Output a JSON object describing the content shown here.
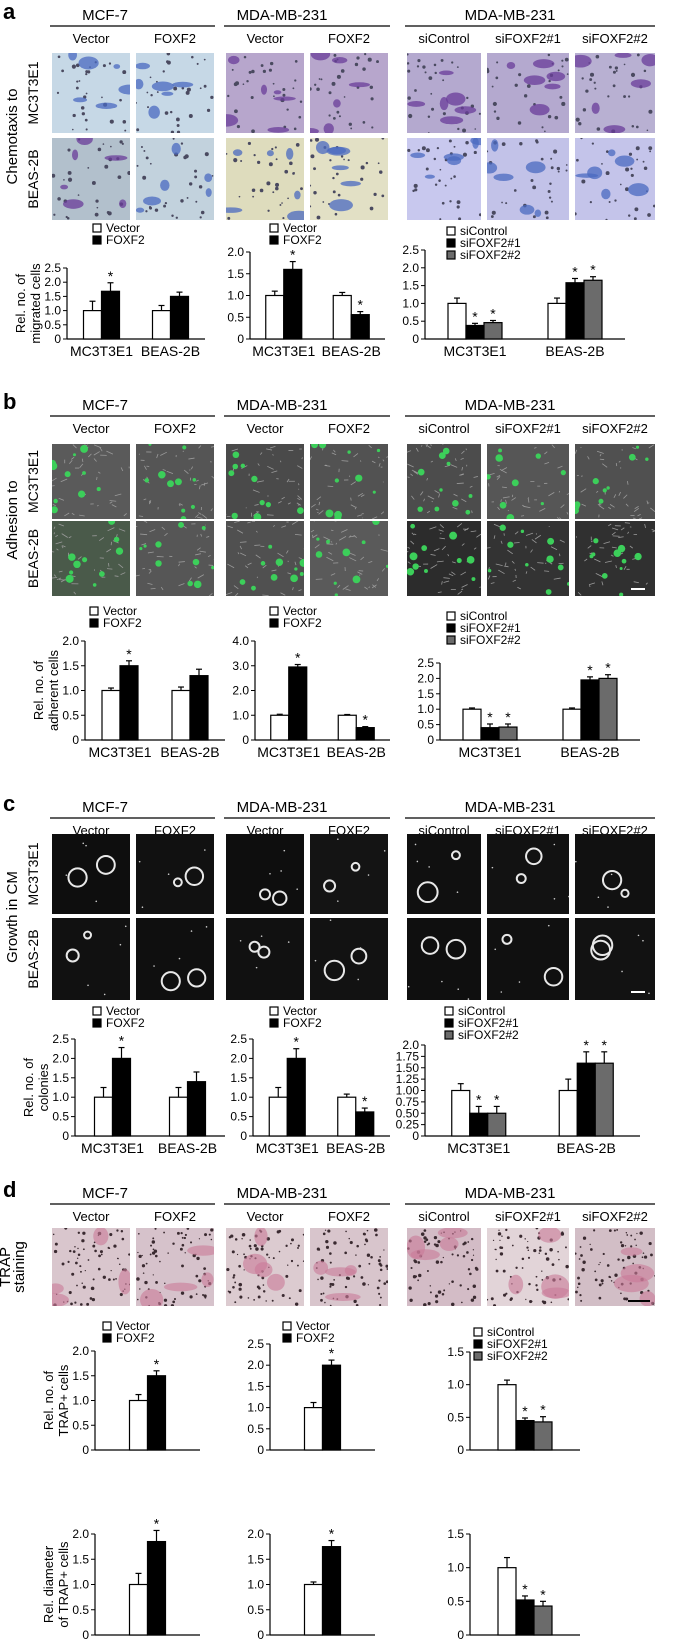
{
  "panels": [
    {
      "letter": "a",
      "groups": [
        {
          "title": "MCF-7",
          "columns": [
            "Vector",
            "FOXF2"
          ]
        },
        {
          "title": "MDA-MB-231",
          "columns": [
            "Vector",
            "FOXF2"
          ]
        },
        {
          "title": "MDA-MB-231",
          "columns": [
            "siControl",
            "siFOXF2#1",
            "siFOXF2#2"
          ]
        }
      ],
      "row_title": [
        "Chemotaxis to"
      ],
      "row_labels": [
        "MC3T3E1",
        "BEAS-2B"
      ],
      "image_palettes": [
        [
          "#c6d8e6",
          "#c6d8e6",
          "#b7a6cc",
          "#b7a6cc",
          "#b4a9cf",
          "#b4a9cf",
          "#b8b0d2"
        ],
        [
          "#b2c0cc",
          "#c2d2dd",
          "#dedcbd",
          "#e2e0c5",
          "#c8c8ee",
          "#c2c2e8",
          "#c4c4ea"
        ]
      ],
      "ylabel": [
        "Rel. no. of",
        "migrated cells"
      ]
    },
    {
      "letter": "b",
      "groups": [
        {
          "title": "MCF-7",
          "columns": [
            "Vector",
            "FOXF2"
          ]
        },
        {
          "title": "MDA-MB-231",
          "columns": [
            "Vector",
            "FOXF2"
          ]
        },
        {
          "title": "MDA-MB-231",
          "columns": [
            "siControl",
            "siFOXF2#1",
            "siFOXF2#2"
          ]
        }
      ],
      "row_title": [
        "Adhesion to"
      ],
      "row_labels": [
        "MC3T3E1",
        "BEAS-2B"
      ],
      "image_palettes": [
        [
          "#5a5a5a",
          "#555555",
          "#4a4a4a",
          "#525252",
          "#4c4c4c",
          "#565656",
          "#505050"
        ],
        [
          "#4a5a4a",
          "#565656",
          "#505050",
          "#5a5a5a",
          "#2c2c2c",
          "#333333",
          "#303030"
        ]
      ],
      "ylabel": [
        "Rel. no. of",
        "adherent cells"
      ]
    },
    {
      "letter": "c",
      "groups": [
        {
          "title": "MCF-7",
          "columns": [
            "Vector",
            "FOXF2"
          ]
        },
        {
          "title": "MDA-MB-231",
          "columns": [
            "Vector",
            "FOXF2"
          ]
        },
        {
          "title": "MDA-MB-231",
          "columns": [
            "siControl",
            "siFOXF2#1",
            "siFOXF2#2"
          ]
        }
      ],
      "row_title": [
        "Growth in CM"
      ],
      "row_labels": [
        "MC3T3E1",
        "BEAS-2B"
      ],
      "image_palettes": [
        [
          "#0e0e0e",
          "#111111",
          "#0e0e0e",
          "#141414",
          "#101010",
          "#121212",
          "#111111"
        ],
        [
          "#111111",
          "#0f0f0f",
          "#111111",
          "#121212",
          "#0f0f0f",
          "#101010",
          "#121212"
        ]
      ],
      "ylabel": [
        "Rel. no. of",
        "colonies"
      ]
    },
    {
      "letter": "d",
      "groups": [
        {
          "title": "MCF-7",
          "columns": [
            "Vector",
            "FOXF2"
          ]
        },
        {
          "title": "MDA-MB-231",
          "columns": [
            "Vector",
            "FOXF2"
          ]
        },
        {
          "title": "MDA-MB-231",
          "columns": [
            "siControl",
            "siFOXF2#1",
            "siFOXF2#2"
          ]
        }
      ],
      "row_title": [
        "TRAP",
        "staining"
      ],
      "row_labels": [],
      "image_palettes": [
        [
          "#d9c6cd",
          "#d6c2cb",
          "#dccbd0",
          "#d8c5cc",
          "#d3bcc6",
          "#e2d4d8",
          "#d2bec6"
        ]
      ],
      "ylabels": [
        [
          "Rel. no. of",
          "TRAP+ cells"
        ],
        [
          "Rel. diameter",
          "of TRAP+ cells"
        ]
      ]
    }
  ],
  "chart_data": [
    {
      "panel": "a",
      "type": "bar",
      "categories": [
        "MC3T3E1",
        "BEAS-2B"
      ],
      "legend": [
        "Vector",
        "FOXF2"
      ],
      "ylabel": "Rel. no. of migrated cells",
      "ylim": [
        0,
        2.5
      ],
      "ticks": [
        "0",
        "0.5",
        "1.0",
        "1.5",
        "2.0",
        "2.5"
      ],
      "series": [
        {
          "name": "Vector",
          "values": [
            1.0,
            1.0
          ],
          "errors": [
            0.33,
            0.18
          ]
        },
        {
          "name": "FOXF2",
          "values": [
            1.68,
            1.5
          ],
          "errors": [
            0.3,
            0.15
          ]
        }
      ],
      "significant": [
        [
          false,
          false
        ],
        [
          true,
          false
        ]
      ]
    },
    {
      "panel": "a",
      "type": "bar",
      "categories": [
        "MC3T3E1",
        "BEAS-2B"
      ],
      "legend": [
        "Vector",
        "FOXF2"
      ],
      "ylabel": "",
      "ylim": [
        0,
        2.0
      ],
      "ticks": [
        "0",
        "0.5",
        "1.0",
        "1.5",
        "2.0"
      ],
      "series": [
        {
          "name": "Vector",
          "values": [
            1.0,
            1.0
          ],
          "errors": [
            0.1,
            0.07
          ]
        },
        {
          "name": "FOXF2",
          "values": [
            1.6,
            0.56
          ],
          "errors": [
            0.18,
            0.07
          ]
        }
      ],
      "significant": [
        [
          false,
          false
        ],
        [
          true,
          true
        ]
      ]
    },
    {
      "panel": "a",
      "type": "bar",
      "categories": [
        "MC3T3E1",
        "BEAS-2B"
      ],
      "legend": [
        "siControl",
        "siFOXF2#1",
        "siFOXF2#2"
      ],
      "ylabel": "",
      "ylim": [
        0,
        2.5
      ],
      "ticks": [
        "0",
        "0.5",
        "1.0",
        "1.5",
        "2.0",
        "2.5"
      ],
      "series": [
        {
          "name": "siControl",
          "values": [
            1.0,
            1.0
          ],
          "errors": [
            0.15,
            0.15
          ]
        },
        {
          "name": "siFOXF2#1",
          "values": [
            0.38,
            1.58
          ],
          "errors": [
            0.06,
            0.12
          ]
        },
        {
          "name": "siFOXF2#2",
          "values": [
            0.46,
            1.65
          ],
          "errors": [
            0.06,
            0.1
          ]
        }
      ],
      "significant": [
        [
          false,
          false
        ],
        [
          true,
          true
        ],
        [
          true,
          true
        ]
      ]
    },
    {
      "panel": "b",
      "type": "bar",
      "categories": [
        "MC3T3E1",
        "BEAS-2B"
      ],
      "legend": [
        "Vector",
        "FOXF2"
      ],
      "ylabel": "Rel. no. of adherent cells",
      "ylim": [
        0,
        2.0
      ],
      "ticks": [
        "0",
        "0.5",
        "1.0",
        "1.5",
        "2.0"
      ],
      "series": [
        {
          "name": "Vector",
          "values": [
            1.0,
            1.0
          ],
          "errors": [
            0.05,
            0.07
          ]
        },
        {
          "name": "FOXF2",
          "values": [
            1.5,
            1.3
          ],
          "errors": [
            0.1,
            0.13
          ]
        }
      ],
      "significant": [
        [
          false,
          false
        ],
        [
          true,
          false
        ]
      ]
    },
    {
      "panel": "b",
      "type": "bar",
      "categories": [
        "MC3T3E1",
        "BEAS-2B"
      ],
      "legend": [
        "Vector",
        "FOXF2"
      ],
      "ylabel": "",
      "ylim": [
        0,
        4.0
      ],
      "ticks": [
        "0",
        "1.0",
        "2.0",
        "3.0",
        "4.0"
      ],
      "series": [
        {
          "name": "Vector",
          "values": [
            1.0,
            1.0
          ],
          "errors": [
            0.04,
            0.03
          ]
        },
        {
          "name": "FOXF2",
          "values": [
            2.95,
            0.5
          ],
          "errors": [
            0.1,
            0.04
          ]
        }
      ],
      "significant": [
        [
          false,
          false
        ],
        [
          true,
          true
        ]
      ]
    },
    {
      "panel": "b",
      "type": "bar",
      "categories": [
        "MC3T3E1",
        "BEAS-2B"
      ],
      "legend": [
        "siControl",
        "siFOXF2#1",
        "siFOXF2#2"
      ],
      "ylabel": "",
      "ylim": [
        0,
        2.5
      ],
      "ticks": [
        "0",
        "0.5",
        "1.0",
        "1.5",
        "2.0",
        "2.5"
      ],
      "series": [
        {
          "name": "siControl",
          "values": [
            1.0,
            1.0
          ],
          "errors": [
            0.04,
            0.04
          ]
        },
        {
          "name": "siFOXF2#1",
          "values": [
            0.4,
            1.95
          ],
          "errors": [
            0.12,
            0.1
          ]
        },
        {
          "name": "siFOXF2#2",
          "values": [
            0.42,
            2.0
          ],
          "errors": [
            0.1,
            0.12
          ]
        }
      ],
      "significant": [
        [
          false,
          false
        ],
        [
          true,
          true
        ],
        [
          true,
          true
        ]
      ]
    },
    {
      "panel": "c",
      "type": "bar",
      "categories": [
        "MC3T3E1",
        "BEAS-2B"
      ],
      "legend": [
        "Vector",
        "FOXF2"
      ],
      "ylabel": "Rel. no. of colonies",
      "ylim": [
        0,
        2.5
      ],
      "ticks": [
        "0",
        "0.5",
        "1.0",
        "1.5",
        "2.0",
        "2.5"
      ],
      "series": [
        {
          "name": "Vector",
          "values": [
            1.0,
            1.0
          ],
          "errors": [
            0.25,
            0.25
          ]
        },
        {
          "name": "FOXF2",
          "values": [
            2.0,
            1.4
          ],
          "errors": [
            0.28,
            0.25
          ]
        }
      ],
      "significant": [
        [
          false,
          false
        ],
        [
          true,
          false
        ]
      ]
    },
    {
      "panel": "c",
      "type": "bar",
      "categories": [
        "MC3T3E1",
        "BEAS-2B"
      ],
      "legend": [
        "Vector",
        "FOXF2"
      ],
      "ylabel": "",
      "ylim": [
        0,
        2.5
      ],
      "ticks": [
        "0",
        "0.5",
        "1.0",
        "1.5",
        "2.0",
        "2.5"
      ],
      "series": [
        {
          "name": "Vector",
          "values": [
            1.0,
            1.0
          ],
          "errors": [
            0.25,
            0.08
          ]
        },
        {
          "name": "FOXF2",
          "values": [
            2.0,
            0.62
          ],
          "errors": [
            0.25,
            0.1
          ]
        }
      ],
      "significant": [
        [
          false,
          false
        ],
        [
          true,
          true
        ]
      ]
    },
    {
      "panel": "c",
      "type": "bar",
      "categories": [
        "MC3T3E1",
        "BEAS-2B"
      ],
      "legend": [
        "siControl",
        "siFOXF2#1",
        "siFOXF2#2"
      ],
      "ylabel": "",
      "ylim": [
        0,
        2.0
      ],
      "ticks": [
        "0",
        "0.25",
        "0.50",
        "0.75",
        "1.00",
        "1.25",
        "1.50",
        "1.75",
        "2.0"
      ],
      "series": [
        {
          "name": "siControl",
          "values": [
            1.0,
            1.0
          ],
          "errors": [
            0.15,
            0.25
          ]
        },
        {
          "name": "siFOXF2#1",
          "values": [
            0.5,
            1.6
          ],
          "errors": [
            0.15,
            0.25
          ]
        },
        {
          "name": "siFOXF2#2",
          "values": [
            0.5,
            1.6
          ],
          "errors": [
            0.15,
            0.25
          ]
        }
      ],
      "significant": [
        [
          false,
          false
        ],
        [
          true,
          true
        ],
        [
          true,
          true
        ]
      ]
    },
    {
      "panel": "d",
      "type": "bar",
      "categories": [
        ""
      ],
      "legend": [
        "Vector",
        "FOXF2"
      ],
      "ylabel": "Rel. no. of TRAP+ cells",
      "ylim": [
        0,
        2.0
      ],
      "ticks": [
        "0",
        "0.5",
        "1.0",
        "1.5",
        "2.0"
      ],
      "series": [
        {
          "name": "Vector",
          "values": [
            1.0
          ],
          "errors": [
            0.12
          ]
        },
        {
          "name": "FOXF2",
          "values": [
            1.5
          ],
          "errors": [
            0.1
          ]
        }
      ],
      "significant": [
        [
          false
        ],
        [
          true
        ]
      ]
    },
    {
      "panel": "d",
      "type": "bar",
      "categories": [
        ""
      ],
      "legend": [
        "Vector",
        "FOXF2"
      ],
      "ylabel": "",
      "ylim": [
        0,
        2.5
      ],
      "ticks": [
        "0",
        "0.5",
        "1.0",
        "1.5",
        "2.0",
        "2.5"
      ],
      "series": [
        {
          "name": "Vector",
          "values": [
            1.0
          ],
          "errors": [
            0.12
          ]
        },
        {
          "name": "FOXF2",
          "values": [
            2.0
          ],
          "errors": [
            0.12
          ]
        }
      ],
      "significant": [
        [
          false
        ],
        [
          true
        ]
      ]
    },
    {
      "panel": "d",
      "type": "bar",
      "categories": [
        ""
      ],
      "legend": [
        "siControl",
        "siFOXF2#1",
        "siFOXF2#2"
      ],
      "ylabel": "",
      "ylim": [
        0,
        1.5
      ],
      "ticks": [
        "0",
        "0.5",
        "1.0",
        "1.5"
      ],
      "series": [
        {
          "name": "siControl",
          "values": [
            1.0
          ],
          "errors": [
            0.07
          ]
        },
        {
          "name": "siFOXF2#1",
          "values": [
            0.45
          ],
          "errors": [
            0.04
          ]
        },
        {
          "name": "siFOXF2#2",
          "values": [
            0.43
          ],
          "errors": [
            0.08
          ]
        }
      ],
      "significant": [
        [
          false
        ],
        [
          true
        ],
        [
          true
        ]
      ]
    },
    {
      "panel": "d",
      "type": "bar",
      "categories": [
        ""
      ],
      "legend": [],
      "ylabel": "Rel. diameter of TRAP+ cells",
      "ylim": [
        0,
        2.0
      ],
      "ticks": [
        "0",
        "0.5",
        "1.0",
        "1.5",
        "2.0"
      ],
      "series": [
        {
          "name": "Vector",
          "values": [
            1.0
          ],
          "errors": [
            0.22
          ]
        },
        {
          "name": "FOXF2",
          "values": [
            1.85
          ],
          "errors": [
            0.22
          ]
        }
      ],
      "significant": [
        [
          false
        ],
        [
          true
        ]
      ]
    },
    {
      "panel": "d",
      "type": "bar",
      "categories": [
        ""
      ],
      "legend": [],
      "ylabel": "",
      "ylim": [
        0,
        2.0
      ],
      "ticks": [
        "0",
        "0.5",
        "1.0",
        "1.5",
        "2.0"
      ],
      "series": [
        {
          "name": "Vector",
          "values": [
            1.0
          ],
          "errors": [
            0.05
          ]
        },
        {
          "name": "FOXF2",
          "values": [
            1.75
          ],
          "errors": [
            0.12
          ]
        }
      ],
      "significant": [
        [
          false
        ],
        [
          true
        ]
      ]
    },
    {
      "panel": "d",
      "type": "bar",
      "categories": [
        ""
      ],
      "legend": [],
      "ylabel": "",
      "ylim": [
        0,
        1.5
      ],
      "ticks": [
        "0",
        "0.5",
        "1.0",
        "1.5"
      ],
      "series": [
        {
          "name": "siControl",
          "values": [
            1.0
          ],
          "errors": [
            0.15
          ]
        },
        {
          "name": "siFOXF2#1",
          "values": [
            0.52
          ],
          "errors": [
            0.06
          ]
        },
        {
          "name": "siFOXF2#2",
          "values": [
            0.43
          ],
          "errors": [
            0.07
          ]
        }
      ],
      "significant": [
        [
          false
        ],
        [
          true
        ],
        [
          true
        ]
      ]
    }
  ],
  "colors": {
    "white_bar": "#ffffff",
    "black_bar": "#000000",
    "gray_bar": "#6b6b6b",
    "scale_bar": "#ffffff"
  }
}
